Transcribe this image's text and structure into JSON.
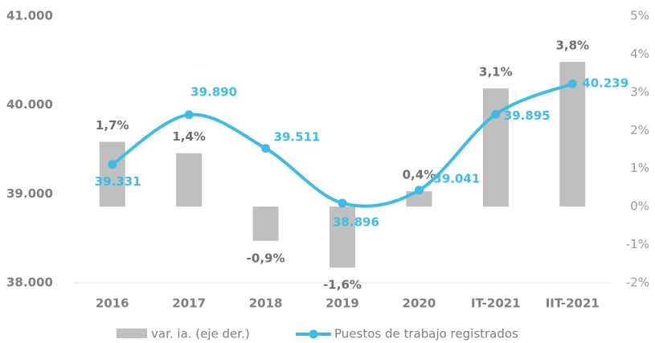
{
  "chart_data": {
    "type": "combo",
    "categories": [
      "2016",
      "2017",
      "2018",
      "2019",
      "2020",
      "IT-2021",
      "IIT-2021"
    ],
    "series": [
      {
        "name": "var. ia. (eje der.)",
        "type": "bar",
        "axis": "y2",
        "color": "#bfbfbf",
        "values": [
          1.7,
          1.4,
          -0.9,
          -1.6,
          0.4,
          3.1,
          3.8
        ],
        "value_labels": [
          "1,7%",
          "1,4%",
          "-0,9%",
          "-1,6%",
          "0,4%",
          "3,1%",
          "3,8%"
        ]
      },
      {
        "name": "Puestos de trabajo registrados",
        "type": "line",
        "color": "#41bbe6",
        "values": [
          39331,
          39890,
          39511,
          38896,
          39041,
          39895,
          40239
        ],
        "value_labels": [
          "39.331",
          "39.890",
          "39.511",
          "38.896",
          "39.041",
          "39.895",
          "40.239"
        ]
      }
    ],
    "ylim": [
      38000,
      41000
    ],
    "yticks": [
      {
        "value": 38000,
        "label": "38.000"
      },
      {
        "value": 39000,
        "label": "39.000"
      },
      {
        "value": 40000,
        "label": "40.000"
      },
      {
        "value": 41000,
        "label": "41.000"
      }
    ],
    "y2lim": [
      -2,
      5
    ],
    "y2ticks": [
      {
        "value": -2,
        "label": "-2%"
      },
      {
        "value": -1,
        "label": "-1%"
      },
      {
        "value": 0,
        "label": "0%"
      },
      {
        "value": 1,
        "label": "1%"
      },
      {
        "value": 2,
        "label": "2%"
      },
      {
        "value": 3,
        "label": "3%"
      },
      {
        "value": 4,
        "label": "4%"
      },
      {
        "value": 5,
        "label": "5%"
      }
    ],
    "grid": false
  }
}
